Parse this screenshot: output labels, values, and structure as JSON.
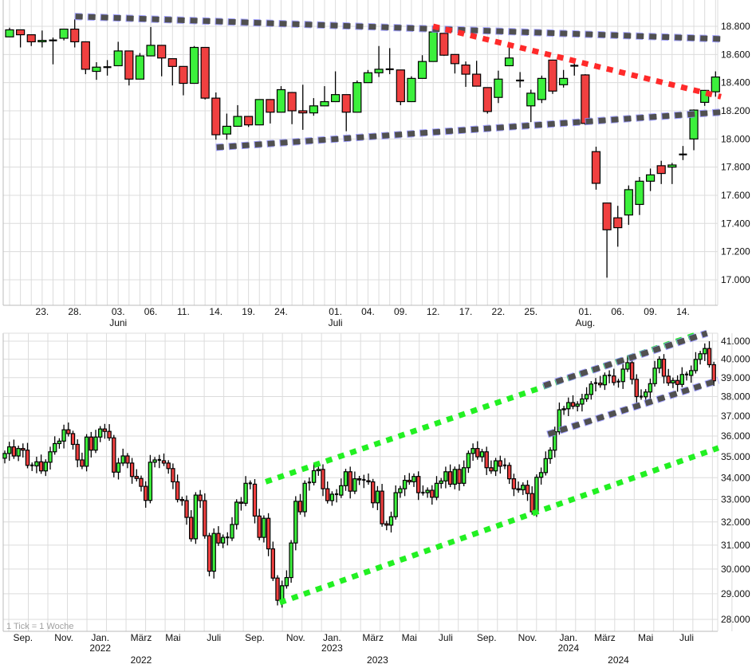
{
  "chart_data": [
    {
      "type": "candlestick",
      "panel": "daily",
      "scale": "linear",
      "ylim": [
        16900,
        18900
      ],
      "colors": {
        "up": "#3cf03c",
        "down": "#f04040",
        "trend": "#505050",
        "trend_glow": "#8c8cff",
        "trend_red": "#ff2a2a"
      },
      "y_ticks": [
        {
          "value": 18800,
          "label": "18.800"
        },
        {
          "value": 18600,
          "label": "18.600"
        },
        {
          "value": 18400,
          "label": "18.400"
        },
        {
          "value": 18200,
          "label": "18.200"
        },
        {
          "value": 18000,
          "label": "18.000"
        },
        {
          "value": 17800,
          "label": "17.800"
        },
        {
          "value": 17600,
          "label": "17.600"
        },
        {
          "value": 17400,
          "label": "17.400"
        },
        {
          "value": 17200,
          "label": "17.200"
        },
        {
          "value": 17000,
          "label": "17.000"
        }
      ],
      "x_ticks": [
        {
          "index": 3,
          "label": "23."
        },
        {
          "index": 6,
          "label": "28."
        },
        {
          "index": 10,
          "label": "03.",
          "month": "Juni"
        },
        {
          "index": 13,
          "label": "06."
        },
        {
          "index": 16,
          "label": "11."
        },
        {
          "index": 19,
          "label": "14."
        },
        {
          "index": 22,
          "label": "19."
        },
        {
          "index": 25,
          "label": "24."
        },
        {
          "index": 30,
          "label": "01.",
          "month": "Juli"
        },
        {
          "index": 33,
          "label": "04."
        },
        {
          "index": 36,
          "label": "09."
        },
        {
          "index": 39,
          "label": "12."
        },
        {
          "index": 42,
          "label": "17."
        },
        {
          "index": 45,
          "label": "22."
        },
        {
          "index": 48,
          "label": "25."
        },
        {
          "index": 53,
          "label": "01.",
          "month": "Aug."
        },
        {
          "index": 56,
          "label": "06."
        },
        {
          "index": 59,
          "label": "09."
        },
        {
          "index": 62,
          "label": "14."
        }
      ],
      "ohlc": [
        [
          18725,
          18790,
          18725,
          18775
        ],
        [
          18775,
          18775,
          18650,
          18740
        ],
        [
          18740,
          18740,
          18660,
          18690
        ],
        [
          18690,
          18770,
          18650,
          18700
        ],
        [
          18700,
          18720,
          18530,
          18700
        ],
        [
          18715,
          18780,
          18700,
          18780
        ],
        [
          18780,
          18850,
          18650,
          18690
        ],
        [
          18690,
          18690,
          18460,
          18495
        ],
        [
          18480,
          18545,
          18420,
          18510
        ],
        [
          18510,
          18560,
          18450,
          18510
        ],
        [
          18520,
          18690,
          18520,
          18625
        ],
        [
          18625,
          18625,
          18380,
          18425
        ],
        [
          18425,
          18610,
          18425,
          18590
        ],
        [
          18590,
          18795,
          18590,
          18665
        ],
        [
          18665,
          18665,
          18445,
          18575
        ],
        [
          18570,
          18570,
          18380,
          18515
        ],
        [
          18515,
          18515,
          18310,
          18395
        ],
        [
          18395,
          18660,
          18395,
          18650
        ],
        [
          18650,
          18650,
          18280,
          18290
        ],
        [
          18290,
          18330,
          17995,
          18030
        ],
        [
          18035,
          18180,
          17995,
          18090
        ],
        [
          18090,
          18240,
          18090,
          18160
        ],
        [
          18160,
          18160,
          18085,
          18100
        ],
        [
          18100,
          18280,
          18100,
          18280
        ],
        [
          18280,
          18280,
          18110,
          18190
        ],
        [
          18190,
          18375,
          18190,
          18350
        ],
        [
          18330,
          18330,
          18105,
          18200
        ],
        [
          18200,
          18385,
          18065,
          18185
        ],
        [
          18185,
          18290,
          18165,
          18235
        ],
        [
          18235,
          18375,
          18235,
          18265
        ],
        [
          18265,
          18480,
          18265,
          18315
        ],
        [
          18315,
          18315,
          18055,
          18190
        ],
        [
          18190,
          18415,
          18190,
          18400
        ],
        [
          18400,
          18490,
          18400,
          18470
        ],
        [
          18470,
          18660,
          18440,
          18495
        ],
        [
          18495,
          18645,
          18460,
          18495
        ],
        [
          18490,
          18490,
          18240,
          18265
        ],
        [
          18265,
          18445,
          18265,
          18430
        ],
        [
          18430,
          18595,
          18430,
          18550
        ],
        [
          18550,
          18770,
          18550,
          18760
        ],
        [
          18750,
          18750,
          18590,
          18595
        ],
        [
          18600,
          18600,
          18465,
          18535
        ],
        [
          18525,
          18550,
          18370,
          18460
        ],
        [
          18460,
          18555,
          18375,
          18375
        ],
        [
          18365,
          18365,
          18180,
          18195
        ],
        [
          18295,
          18485,
          18255,
          18425
        ],
        [
          18520,
          18660,
          18520,
          18575
        ],
        [
          18415,
          18475,
          18365,
          18415
        ],
        [
          18235,
          18350,
          18120,
          18325
        ],
        [
          18280,
          18450,
          18255,
          18430
        ],
        [
          18560,
          18560,
          18320,
          18340
        ],
        [
          18385,
          18490,
          18365,
          18430
        ],
        [
          18520,
          18560,
          18450,
          18520
        ],
        [
          18455,
          18460,
          18100,
          18110
        ],
        [
          17910,
          17945,
          17640,
          17685
        ],
        [
          17545,
          17545,
          17015,
          17355
        ],
        [
          17440,
          17525,
          17235,
          17370
        ],
        [
          17460,
          17670,
          17390,
          17640
        ],
        [
          17535,
          17730,
          17460,
          17700
        ],
        [
          17700,
          17790,
          17630,
          17745
        ],
        [
          17810,
          17845,
          17680,
          17755
        ],
        [
          17800,
          17830,
          17680,
          17815
        ],
        [
          17885,
          17950,
          17850,
          17890
        ],
        [
          18000,
          18210,
          17920,
          18205
        ],
        [
          18260,
          18345,
          18235,
          18345
        ],
        [
          18335,
          18480,
          18300,
          18440
        ]
      ],
      "trendlines": [
        {
          "name": "upper-resistance",
          "style": "gray",
          "from": [
            6,
            18870
          ],
          "to": [
            65.5,
            18710
          ]
        },
        {
          "name": "lower-support",
          "style": "gray",
          "from": [
            19,
            17940
          ],
          "to": [
            65.5,
            18190
          ]
        },
        {
          "name": "downtrend",
          "style": "red",
          "from": [
            39,
            18800
          ],
          "to": [
            65.5,
            18300
          ]
        }
      ]
    },
    {
      "type": "candlestick",
      "panel": "weekly",
      "scale": "log",
      "ylim": [
        27500,
        41500
      ],
      "note": "1 Tick = 1 Woche",
      "first_open": 34920,
      "y_ticks": [
        {
          "value": 41000,
          "label": "41.000"
        },
        {
          "value": 40000,
          "label": "40.000"
        },
        {
          "value": 39000,
          "label": "39.000"
        },
        {
          "value": 38000,
          "label": "38.000"
        },
        {
          "value": 37000,
          "label": "37.000"
        },
        {
          "value": 36000,
          "label": "36.000"
        },
        {
          "value": 35000,
          "label": "35.000"
        },
        {
          "value": 34000,
          "label": "34.000"
        },
        {
          "value": 33000,
          "label": "33.000"
        },
        {
          "value": 32000,
          "label": "32.000"
        },
        {
          "value": 31000,
          "label": "31.000"
        },
        {
          "value": 30000,
          "label": "30.000"
        },
        {
          "value": 29000,
          "label": "29.000"
        },
        {
          "value": 28000,
          "label": "28.000"
        }
      ],
      "x_ticks": [
        {
          "index": 4,
          "label": "Sep."
        },
        {
          "index": 13,
          "label": "Nov."
        },
        {
          "index": 21,
          "label": "Jan.",
          "year": "2022"
        },
        {
          "index": 30,
          "label": "März"
        },
        {
          "index": 37,
          "label": "Mai"
        },
        {
          "index": 46,
          "label": "Juli"
        },
        {
          "index": 55,
          "label": "Sep."
        },
        {
          "index": 64,
          "label": "Nov."
        },
        {
          "index": 72,
          "label": "Jan.",
          "year": "2023"
        },
        {
          "index": 81,
          "label": "März"
        },
        {
          "index": 89,
          "label": "Mai"
        },
        {
          "index": 97,
          "label": "Juli"
        },
        {
          "index": 106,
          "label": "Sep."
        },
        {
          "index": 115,
          "label": "Nov."
        },
        {
          "index": 124,
          "label": "Jan.",
          "year": "2024"
        },
        {
          "index": 132,
          "label": "März"
        },
        {
          "index": 141,
          "label": "Mai"
        },
        {
          "index": 150,
          "label": "Juli"
        }
      ],
      "year_labels": [
        {
          "index": 30,
          "label": "2022"
        },
        {
          "index": 82,
          "label": "2023"
        },
        {
          "index": 135,
          "label": "2024"
        }
      ],
      "closes": [
        35150,
        35470,
        35030,
        35390,
        35310,
        34580,
        34555,
        34750,
        34320,
        34730,
        35230,
        35630,
        35750,
        36310,
        36120,
        35590,
        34840,
        34540,
        35950,
        35310,
        35950,
        36350,
        36230,
        35910,
        34260,
        34690,
        35030,
        34690,
        34060,
        33965,
        33600,
        32960,
        34730,
        34840,
        34800,
        34690,
        34430,
        33810,
        33000,
        32950,
        32200,
        31270,
        33200,
        32950,
        31400,
        29910,
        31500,
        31090,
        31330,
        31300,
        31890,
        32880,
        32830,
        33740,
        33700,
        32260,
        31330,
        32160,
        30840,
        29630,
        28740,
        29320,
        29650,
        31090,
        32920,
        32450,
        33740,
        33780,
        34330,
        34390,
        33490,
        32950,
        33240,
        33200,
        33630,
        34280,
        33380,
        33950,
        33900,
        33860,
        33810,
        32850,
        33380,
        31920,
        31860,
        32230,
        33310,
        33490,
        33880,
        33810,
        34060,
        33310,
        33310,
        33420,
        33100,
        33740,
        33850,
        34280,
        33700,
        34390,
        33740,
        34470,
        35150,
        35390,
        34990,
        35230,
        34470,
        34320,
        34800,
        34540,
        34580,
        33950,
        33490,
        33440,
        33650,
        33270,
        32450,
        34020,
        34240,
        34900,
        35310,
        36210,
        37320,
        37370,
        37690,
        37500,
        37610,
        37880,
        38110,
        38660,
        38710,
        38620,
        39120,
        39090,
        38740,
        38790,
        39460,
        39810,
        38910,
        38000,
        37990,
        38240,
        38680,
        39510,
        40000,
        39080,
        38720,
        38850,
        38640,
        39170,
        39120,
        39380,
        39990,
        40300,
        40590,
        39700,
        38830
      ],
      "trendlines": [
        {
          "name": "channel-upper-green",
          "style": "green",
          "from": [
            57.4,
            33810
          ],
          "to": [
            153,
            41450
          ]
        },
        {
          "name": "channel-lower-green",
          "style": "green",
          "from": [
            60.5,
            28650
          ],
          "to": [
            157,
            35420
          ]
        },
        {
          "name": "channel-upper-gray",
          "style": "gray",
          "from": [
            118.5,
            38565
          ],
          "to": [
            154.5,
            41450
          ]
        },
        {
          "name": "channel-lower-gray",
          "style": "gray",
          "from": [
            119.4,
            36080
          ],
          "to": [
            157,
            38860
          ]
        }
      ]
    }
  ]
}
